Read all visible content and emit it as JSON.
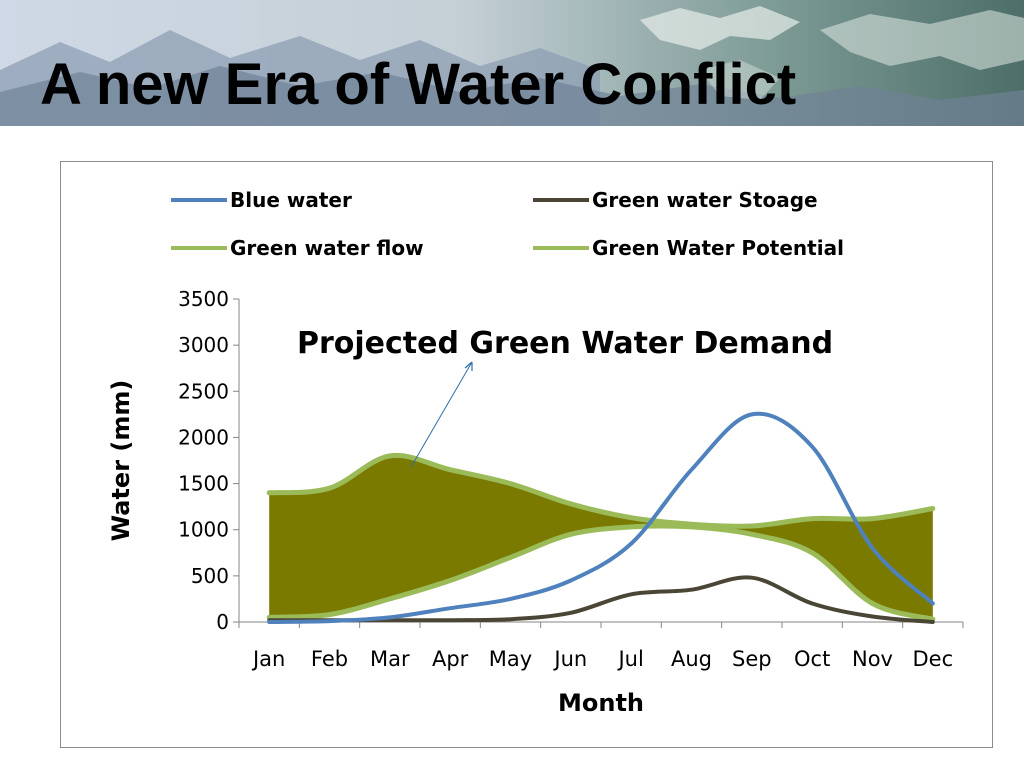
{
  "slide": {
    "title": "A new Era of Water Conflict"
  },
  "chart_data": {
    "type": "line",
    "title": "",
    "xlabel": "Month",
    "ylabel": "Water (mm)",
    "categories": [
      "Jan",
      "Feb",
      "Mar",
      "Apr",
      "May",
      "Jun",
      "Jul",
      "Aug",
      "Sep",
      "Oct",
      "Nov",
      "Dec"
    ],
    "ylim": [
      0,
      3500
    ],
    "yticks": [
      0,
      500,
      1000,
      1500,
      2000,
      2500,
      3000,
      3500
    ],
    "grid": false,
    "legend_position": "top",
    "series": [
      {
        "name": "Blue water",
        "color": "#4f81bd",
        "values": [
          0,
          10,
          50,
          150,
          250,
          450,
          850,
          1650,
          2250,
          1900,
          800,
          200
        ]
      },
      {
        "name": "Green water Stoage",
        "color": "#4a4535",
        "values": [
          20,
          20,
          20,
          20,
          30,
          100,
          300,
          350,
          480,
          200,
          60,
          0
        ]
      },
      {
        "name": "Green water flow",
        "color": "#9bbb59",
        "values": [
          50,
          80,
          250,
          450,
          700,
          950,
          1030,
          1030,
          950,
          750,
          200,
          30
        ]
      },
      {
        "name": "Green Water Potential",
        "color": "#9bbb59",
        "values": [
          1400,
          1450,
          1800,
          1650,
          1500,
          1280,
          1130,
          1060,
          1040,
          1120,
          1120,
          1230
        ]
      }
    ],
    "shaded_region": {
      "between": [
        "Green water flow",
        "Green Water Potential"
      ],
      "color": "#7a7a00"
    },
    "annotation": {
      "text": "Projected Green Water Demand"
    }
  }
}
